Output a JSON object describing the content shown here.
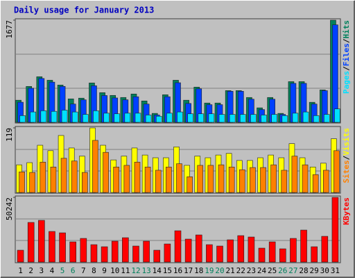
{
  "chart_data": {
    "type": "bar",
    "title": "Daily usage for January 2013",
    "categories": [
      "1",
      "2",
      "3",
      "4",
      "5",
      "6",
      "7",
      "8",
      "9",
      "10",
      "11",
      "12",
      "13",
      "14",
      "15",
      "16",
      "17",
      "18",
      "19",
      "20",
      "21",
      "22",
      "23",
      "24",
      "25",
      "26",
      "27",
      "28",
      "29",
      "30",
      "31"
    ],
    "category_colors": [
      "#000000",
      "#000000",
      "#000000",
      "#000000",
      "#00805c",
      "#00805c",
      "#000000",
      "#000000",
      "#000000",
      "#000000",
      "#000000",
      "#00805c",
      "#00805c",
      "#000000",
      "#000000",
      "#000000",
      "#000000",
      "#000000",
      "#00805c",
      "#00805c",
      "#000000",
      "#000000",
      "#000000",
      "#000000",
      "#000000",
      "#00805c",
      "#00805c",
      "#000000",
      "#000000",
      "#000000",
      "#000000"
    ],
    "legend_separator": "/",
    "grid": true,
    "panels": [
      {
        "ylim": [
          0,
          1677
        ],
        "yticks": [
          1677
        ],
        "series": [
          {
            "name": "Hits",
            "color": "#00805c",
            "values": [
              363,
              589,
              748,
              691,
              612,
              385,
              397,
              646,
              487,
              442,
              408,
              465,
              351,
              147,
              453,
              691,
              363,
              578,
              317,
              317,
              521,
              521,
              408,
              238,
              408,
              147,
              668,
              668,
              329,
              532,
              1677
            ]
          },
          {
            "name": "Files",
            "color": "#0040ff",
            "values": [
              330,
              560,
              720,
              660,
              590,
              300,
              370,
              600,
              440,
              400,
              370,
              420,
              300,
              120,
              420,
              650,
              310,
              550,
              290,
              290,
              510,
              510,
              380,
              210,
              380,
              130,
              640,
              640,
              300,
              520,
              1600
            ]
          },
          {
            "name": "Pages",
            "color": "#00e0ff",
            "values": [
              110,
              170,
              190,
              180,
              200,
              170,
              130,
              190,
              150,
              140,
              150,
              150,
              120,
              100,
              150,
              170,
              140,
              140,
              140,
              130,
              130,
              130,
              130,
              120,
              130,
              110,
              150,
              170,
              110,
              130,
              220
            ]
          }
        ]
      },
      {
        "ylim": [
          0,
          119
        ],
        "yticks": [
          119
        ],
        "series": [
          {
            "name": "Visits",
            "color": "#ffff00",
            "values": [
              51,
              55,
              87,
              77,
              105,
              82,
              67,
              119,
              87,
              60,
              67,
              82,
              69,
              64,
              64,
              84,
              50,
              67,
              64,
              69,
              72,
              59,
              59,
              64,
              69,
              64,
              90,
              64,
              47,
              54,
              99
            ]
          },
          {
            "name": "Sites",
            "color": "#ff8000",
            "values": [
              38,
              37,
              56,
              47,
              63,
              58,
              37,
              96,
              74,
              47,
              50,
              56,
              47,
              41,
              47,
              53,
              29,
              50,
              50,
              51,
              47,
              42,
              46,
              46,
              51,
              41,
              67,
              51,
              33,
              41,
              77
            ]
          }
        ]
      },
      {
        "ylim": [
          0,
          50242
        ],
        "yticks": [
          50242
        ],
        "series": [
          {
            "name": "KBytes",
            "color": "#ff0000",
            "values": [
              9180,
              30780,
              32400,
              23760,
              22680,
              15660,
              18360,
              13500,
              11880,
              16200,
              18900,
              12420,
              16200,
              9180,
              14040,
              24300,
              17820,
              21060,
              13500,
              12420,
              17280,
              20520,
              19440,
              10800,
              15660,
              10260,
              18360,
              24840,
              11880,
              19980,
              50242
            ]
          }
        ]
      }
    ]
  }
}
